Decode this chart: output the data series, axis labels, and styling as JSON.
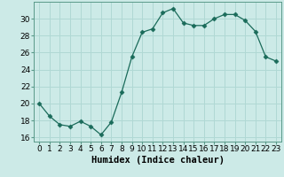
{
  "x": [
    0,
    1,
    2,
    3,
    4,
    5,
    6,
    7,
    8,
    9,
    10,
    11,
    12,
    13,
    14,
    15,
    16,
    17,
    18,
    19,
    20,
    21,
    22,
    23
  ],
  "y": [
    20.0,
    18.5,
    17.5,
    17.3,
    17.9,
    17.3,
    16.3,
    17.8,
    21.3,
    25.5,
    28.4,
    28.8,
    30.7,
    31.2,
    29.5,
    29.2,
    29.2,
    30.0,
    30.5,
    30.5,
    29.8,
    28.5,
    25.5,
    25.0
  ],
  "xlabel": "Humidex (Indice chaleur)",
  "xlim": [
    -0.5,
    23.5
  ],
  "ylim": [
    15.5,
    32.0
  ],
  "yticks": [
    16,
    18,
    20,
    22,
    24,
    26,
    28,
    30
  ],
  "xticks": [
    0,
    1,
    2,
    3,
    4,
    5,
    6,
    7,
    8,
    9,
    10,
    11,
    12,
    13,
    14,
    15,
    16,
    17,
    18,
    19,
    20,
    21,
    22,
    23
  ],
  "line_color": "#1a6b5a",
  "marker": "D",
  "marker_size": 2.5,
  "bg_color": "#cceae7",
  "grid_color": "#b0d8d4",
  "tick_label_fontsize": 6.5,
  "xlabel_fontsize": 7.5
}
